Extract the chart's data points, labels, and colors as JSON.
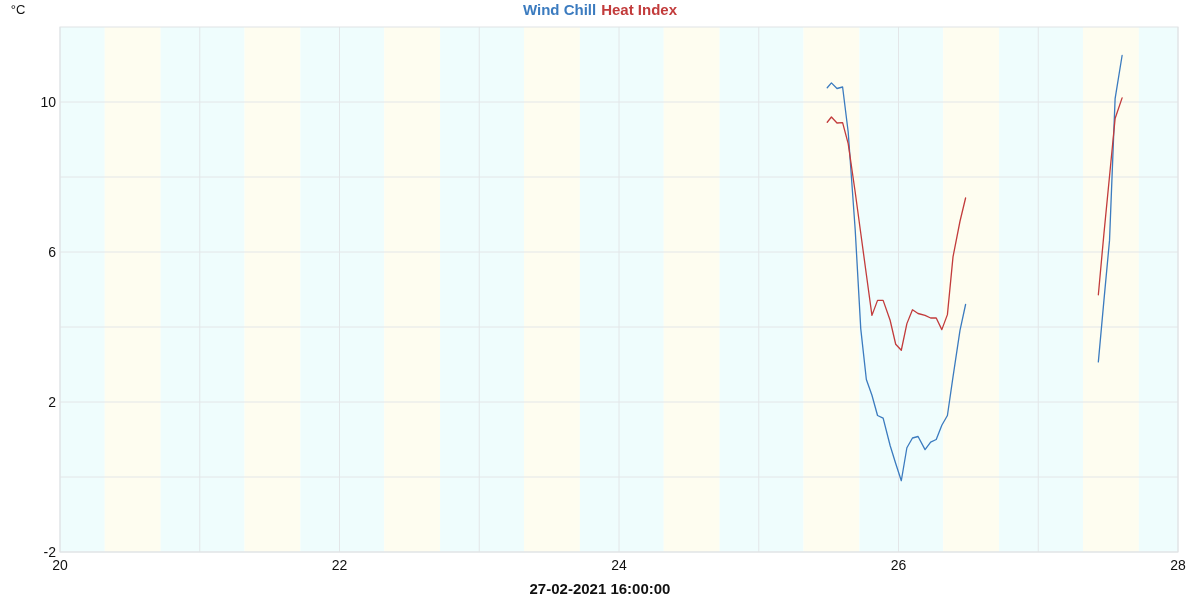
{
  "chart_data": {
    "type": "line",
    "xlabel": "27-02-2021 16:00:00",
    "ylabel": "°C",
    "x": [
      25.49,
      25.52,
      25.56,
      25.6,
      25.64,
      25.69,
      25.73,
      25.77,
      25.81,
      25.85,
      25.89,
      25.94,
      25.98,
      26.02,
      26.06,
      26.1,
      26.14,
      26.19,
      26.23,
      26.27,
      26.31,
      26.35,
      26.39,
      26.44,
      26.48,
      26.52,
      27.43,
      27.47,
      27.51,
      27.55,
      27.6
    ],
    "series": [
      {
        "name": "Wind Chill",
        "color": "#3b7bbf",
        "values": [
          10.38,
          10.51,
          10.36,
          10.4,
          9.2,
          6.6,
          3.95,
          2.6,
          2.18,
          1.64,
          1.57,
          0.84,
          0.36,
          -0.1,
          0.78,
          1.04,
          1.08,
          0.73,
          0.93,
          1.0,
          1.38,
          1.64,
          2.67,
          3.91,
          4.6,
          null,
          3.07,
          4.71,
          6.31,
          10.09,
          11.24
        ]
      },
      {
        "name": "Heat Index",
        "color": "#c23b3b",
        "values": [
          9.46,
          9.6,
          9.44,
          9.45,
          8.89,
          7.6,
          6.5,
          5.4,
          4.31,
          4.71,
          4.71,
          4.18,
          3.54,
          3.38,
          4.09,
          4.46,
          4.36,
          4.31,
          4.24,
          4.24,
          3.93,
          4.33,
          5.87,
          6.82,
          7.44,
          null,
          4.86,
          6.49,
          8.02,
          9.56,
          10.11
        ]
      }
    ],
    "xlim": [
      20,
      28
    ],
    "ylim": [
      -2,
      12
    ],
    "xticks": [
      20,
      {
        "value": 21,
        "label": null
      },
      22,
      {
        "value": 23,
        "label": null
      },
      24,
      {
        "value": 25,
        "label": null
      },
      26,
      {
        "value": 27,
        "label": null
      },
      28
    ],
    "yticks": [
      -2,
      {
        "value": 0,
        "label": null
      },
      2,
      {
        "value": 4,
        "label": null
      },
      6,
      {
        "value": 8,
        "label": null
      },
      10
    ],
    "grid": true,
    "legend": "top",
    "bands": [
      {
        "axis": "x",
        "from": 20,
        "to": 20.32,
        "color": "#effdfd"
      },
      {
        "axis": "x",
        "from": 20.32,
        "to": 20.72,
        "color": "#fefdf0"
      },
      {
        "axis": "x",
        "from": 20.72,
        "to": 21.32,
        "color": "#effdfd"
      },
      {
        "axis": "x",
        "from": 21.32,
        "to": 21.72,
        "color": "#fefdf0"
      },
      {
        "axis": "x",
        "from": 21.72,
        "to": 22.32,
        "color": "#effdfd"
      },
      {
        "axis": "x",
        "from": 22.32,
        "to": 22.72,
        "color": "#fefdf0"
      },
      {
        "axis": "x",
        "from": 22.72,
        "to": 23.32,
        "color": "#effdfd"
      },
      {
        "axis": "x",
        "from": 23.32,
        "to": 23.72,
        "color": "#fefdf0"
      },
      {
        "axis": "x",
        "from": 23.72,
        "to": 24.32,
        "color": "#effdfd"
      },
      {
        "axis": "x",
        "from": 24.32,
        "to": 24.72,
        "color": "#fefdf0"
      },
      {
        "axis": "x",
        "from": 24.72,
        "to": 25.32,
        "color": "#effdfd"
      },
      {
        "axis": "x",
        "from": 25.32,
        "to": 25.72,
        "color": "#fefdf0"
      },
      {
        "axis": "x",
        "from": 25.72,
        "to": 26.32,
        "color": "#effdfd"
      },
      {
        "axis": "x",
        "from": 26.32,
        "to": 26.72,
        "color": "#fefdf0"
      },
      {
        "axis": "x",
        "from": 26.72,
        "to": 27.32,
        "color": "#effdfd"
      },
      {
        "axis": "x",
        "from": 27.32,
        "to": 27.72,
        "color": "#fefdf0"
      },
      {
        "axis": "x",
        "from": 27.72,
        "to": 28,
        "color": "#effdfd"
      }
    ]
  }
}
